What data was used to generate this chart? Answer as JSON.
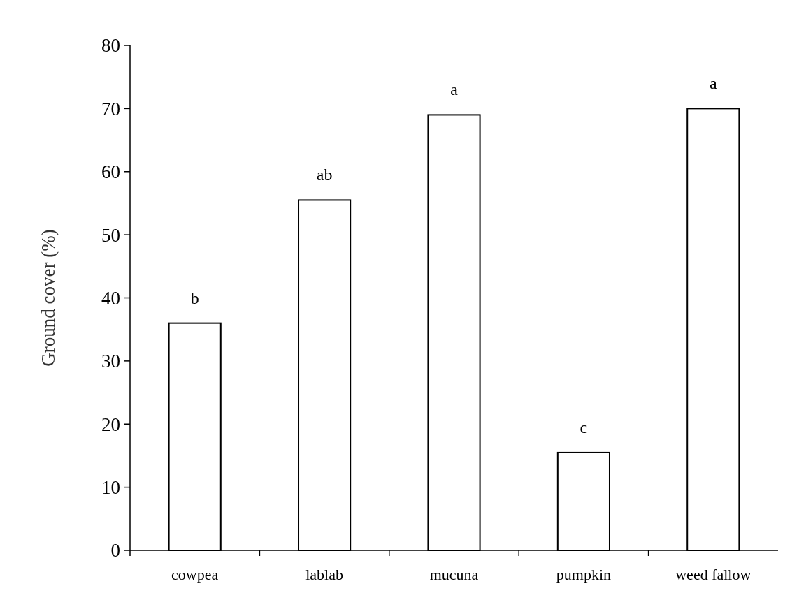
{
  "chart_data": {
    "type": "bar",
    "ylabel": "Ground cover (%)",
    "categories": [
      "cowpea",
      "lablab",
      "mucuna",
      "pumpkin",
      "weed fallow"
    ],
    "values": [
      36,
      55.5,
      69,
      15.5,
      70
    ],
    "color": "#ffffff",
    "ylim": [
      0,
      80
    ],
    "yticks": [
      0,
      10,
      20,
      30,
      40,
      50,
      60,
      70,
      80
    ],
    "grid": false,
    "annotations": [
      {
        "text": "b",
        "x": "cowpea",
        "y": 36
      },
      {
        "text": "ab",
        "x": "lablab",
        "y": 55.5
      },
      {
        "text": "a",
        "x": "mucuna",
        "y": 69
      },
      {
        "text": "c",
        "x": "pumpkin",
        "y": 15.5
      },
      {
        "text": "a",
        "x": "weed fallow",
        "y": 70
      }
    ]
  }
}
